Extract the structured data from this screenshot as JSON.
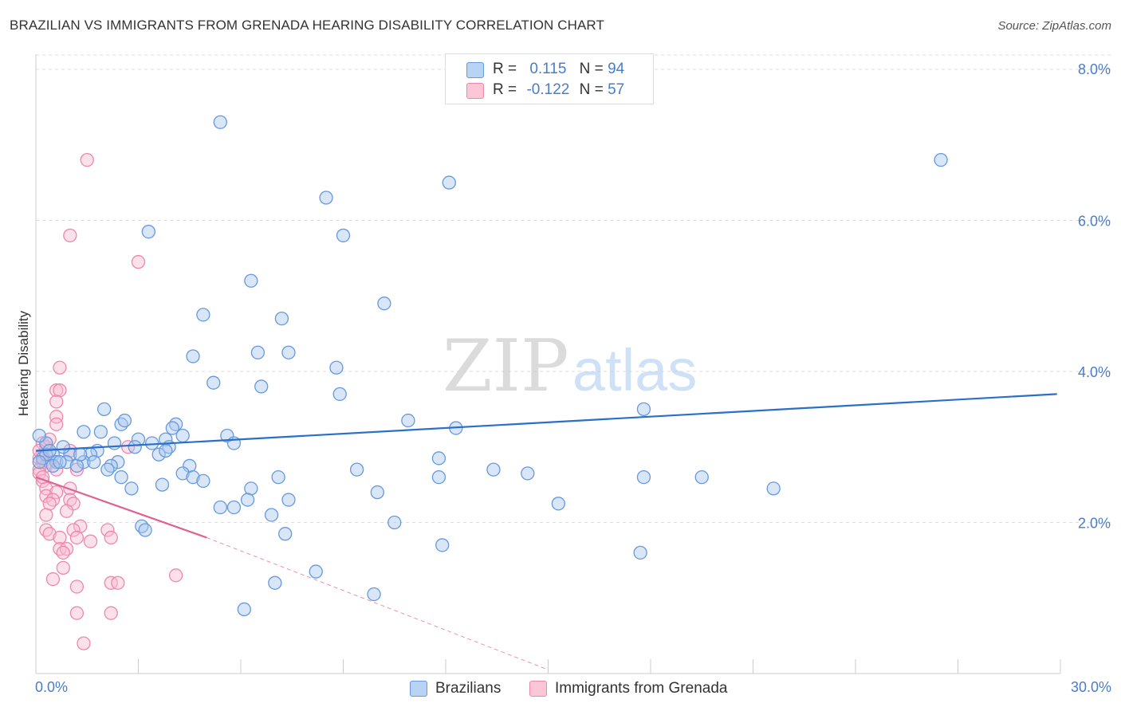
{
  "title": "BRAZILIAN VS IMMIGRANTS FROM GRENADA HEARING DISABILITY CORRELATION CHART",
  "source": "Source: ZipAtlas.com",
  "watermark": {
    "zip": "ZIP",
    "atlas": "atlas"
  },
  "colors": {
    "blue_fill": "#a8c8f0",
    "blue_stroke": "#6699dd",
    "blue_line": "#2a6fc9",
    "pink_fill": "#f8bcd0",
    "pink_stroke": "#ee88aa",
    "pink_line": "#e06090",
    "axis_text": "#4a7cc9",
    "grid": "#dddddd"
  },
  "legend": {
    "r_label": "R =",
    "n_label": "N =",
    "series1": {
      "r": "0.115",
      "n": "94"
    },
    "series2": {
      "r": "-0.122",
      "n": "57"
    }
  },
  "chart_data": {
    "type": "scatter",
    "title": "BRAZILIAN VS IMMIGRANTS FROM GRENADA HEARING DISABILITY CORRELATION CHART",
    "xlabel": "",
    "ylabel": "Hearing Disability",
    "xlim": [
      0,
      30
    ],
    "ylim": [
      0,
      8.2
    ],
    "x_tick_labels": [
      "0.0%",
      "30.0%"
    ],
    "y_ticks": [
      2,
      4,
      6,
      8
    ],
    "y_tick_labels": [
      "2.0%",
      "4.0%",
      "6.0%",
      "8.0%"
    ],
    "grid": true,
    "series": [
      {
        "name": "Brazilians",
        "trend": {
          "x": [
            0,
            29.9
          ],
          "y": [
            2.95,
            3.7
          ]
        },
        "points": [
          [
            5.4,
            7.3
          ],
          [
            26.5,
            6.8
          ],
          [
            12.1,
            6.5
          ],
          [
            8.5,
            6.3
          ],
          [
            3.3,
            5.85
          ],
          [
            9.0,
            5.8
          ],
          [
            6.3,
            5.2
          ],
          [
            10.2,
            4.9
          ],
          [
            4.9,
            4.75
          ],
          [
            7.2,
            4.7
          ],
          [
            4.6,
            4.2
          ],
          [
            6.5,
            4.25
          ],
          [
            7.4,
            4.25
          ],
          [
            8.8,
            4.05
          ],
          [
            5.2,
            3.85
          ],
          [
            6.6,
            3.8
          ],
          [
            8.9,
            3.7
          ],
          [
            2.0,
            3.5
          ],
          [
            17.8,
            3.5
          ],
          [
            10.9,
            3.35
          ],
          [
            2.5,
            3.3
          ],
          [
            2.6,
            3.35
          ],
          [
            4.1,
            3.3
          ],
          [
            4.0,
            3.25
          ],
          [
            12.3,
            3.25
          ],
          [
            1.4,
            3.2
          ],
          [
            1.9,
            3.2
          ],
          [
            5.6,
            3.15
          ],
          [
            4.3,
            3.15
          ],
          [
            3.0,
            3.1
          ],
          [
            3.8,
            3.1
          ],
          [
            3.4,
            3.05
          ],
          [
            0.3,
            3.05
          ],
          [
            2.3,
            3.05
          ],
          [
            5.8,
            3.05
          ],
          [
            2.9,
            3.0
          ],
          [
            3.9,
            3.0
          ],
          [
            1.8,
            2.95
          ],
          [
            0.5,
            2.9
          ],
          [
            1.0,
            2.9
          ],
          [
            3.6,
            2.9
          ],
          [
            3.8,
            2.95
          ],
          [
            1.6,
            2.9
          ],
          [
            0.2,
            2.85
          ],
          [
            0.6,
            2.8
          ],
          [
            0.9,
            2.8
          ],
          [
            1.4,
            2.8
          ],
          [
            2.4,
            2.8
          ],
          [
            11.8,
            2.85
          ],
          [
            1.2,
            2.75
          ],
          [
            0.5,
            2.75
          ],
          [
            1.7,
            2.8
          ],
          [
            2.2,
            2.75
          ],
          [
            4.5,
            2.75
          ],
          [
            9.4,
            2.7
          ],
          [
            13.4,
            2.7
          ],
          [
            2.1,
            2.7
          ],
          [
            14.4,
            2.65
          ],
          [
            4.3,
            2.65
          ],
          [
            7.1,
            2.6
          ],
          [
            2.5,
            2.6
          ],
          [
            4.6,
            2.6
          ],
          [
            11.8,
            2.6
          ],
          [
            17.8,
            2.6
          ],
          [
            19.5,
            2.6
          ],
          [
            4.9,
            2.55
          ],
          [
            3.7,
            2.5
          ],
          [
            2.8,
            2.45
          ],
          [
            6.3,
            2.45
          ],
          [
            10.0,
            2.4
          ],
          [
            21.6,
            2.45
          ],
          [
            7.4,
            2.3
          ],
          [
            6.2,
            2.3
          ],
          [
            15.3,
            2.25
          ],
          [
            5.4,
            2.2
          ],
          [
            5.8,
            2.2
          ],
          [
            6.9,
            2.1
          ],
          [
            10.5,
            2.0
          ],
          [
            3.1,
            1.95
          ],
          [
            3.2,
            1.9
          ],
          [
            7.3,
            1.85
          ],
          [
            11.9,
            1.7
          ],
          [
            17.7,
            1.6
          ],
          [
            8.2,
            1.35
          ],
          [
            7.0,
            1.2
          ],
          [
            9.9,
            1.05
          ],
          [
            6.1,
            0.85
          ],
          [
            0.1,
            3.15
          ],
          [
            0.8,
            3.0
          ],
          [
            0.3,
            2.9
          ],
          [
            0.1,
            2.8
          ],
          [
            0.7,
            2.8
          ],
          [
            1.3,
            2.9
          ],
          [
            0.4,
            2.95
          ]
        ]
      },
      {
        "name": "Immigrants from Grenada",
        "trend": {
          "x": [
            0,
            5.0
          ],
          "y": [
            2.6,
            1.8
          ]
        },
        "trend_extension": {
          "x": [
            5.0,
            15.0
          ],
          "y": [
            1.8,
            0.05
          ]
        },
        "points": [
          [
            1.5,
            6.8
          ],
          [
            1.0,
            5.8
          ],
          [
            3.0,
            5.45
          ],
          [
            0.7,
            4.05
          ],
          [
            0.6,
            3.75
          ],
          [
            0.7,
            3.75
          ],
          [
            0.6,
            3.6
          ],
          [
            0.6,
            3.4
          ],
          [
            0.6,
            3.3
          ],
          [
            0.2,
            3.05
          ],
          [
            0.3,
            3.0
          ],
          [
            0.2,
            2.9
          ],
          [
            2.7,
            3.0
          ],
          [
            1.0,
            2.95
          ],
          [
            0.1,
            2.85
          ],
          [
            0.2,
            2.8
          ],
          [
            0.4,
            2.8
          ],
          [
            0.3,
            2.75
          ],
          [
            0.1,
            2.7
          ],
          [
            0.6,
            2.7
          ],
          [
            1.2,
            2.7
          ],
          [
            0.1,
            2.65
          ],
          [
            0.2,
            2.55
          ],
          [
            1.0,
            2.45
          ],
          [
            0.3,
            2.45
          ],
          [
            0.6,
            2.4
          ],
          [
            0.3,
            2.35
          ],
          [
            0.5,
            2.3
          ],
          [
            1.0,
            2.3
          ],
          [
            0.4,
            2.25
          ],
          [
            1.1,
            2.25
          ],
          [
            0.3,
            2.1
          ],
          [
            0.9,
            2.15
          ],
          [
            1.3,
            1.95
          ],
          [
            0.3,
            1.9
          ],
          [
            1.1,
            1.9
          ],
          [
            2.1,
            1.9
          ],
          [
            0.4,
            1.85
          ],
          [
            0.7,
            1.8
          ],
          [
            1.2,
            1.8
          ],
          [
            2.2,
            1.8
          ],
          [
            1.6,
            1.75
          ],
          [
            0.7,
            1.65
          ],
          [
            0.9,
            1.65
          ],
          [
            0.8,
            1.6
          ],
          [
            0.8,
            1.4
          ],
          [
            4.1,
            1.3
          ],
          [
            0.5,
            1.25
          ],
          [
            2.2,
            1.2
          ],
          [
            2.4,
            1.2
          ],
          [
            1.2,
            1.15
          ],
          [
            1.2,
            0.8
          ],
          [
            2.2,
            0.8
          ],
          [
            1.4,
            0.4
          ],
          [
            0.1,
            2.95
          ],
          [
            0.4,
            3.1
          ],
          [
            0.2,
            2.6
          ]
        ]
      }
    ]
  }
}
